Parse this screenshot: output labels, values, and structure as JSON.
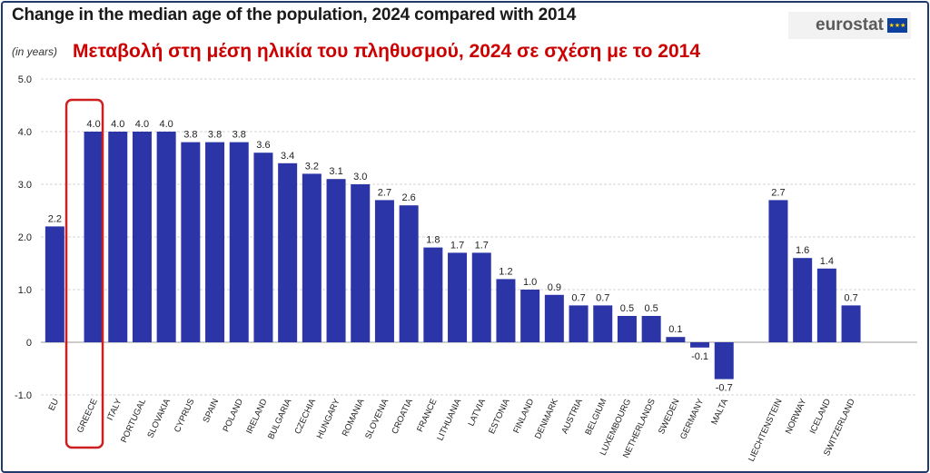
{
  "header": {
    "title": "Change in the median age of the population, 2024 compared with 2014",
    "subtitle": "(in years)",
    "greek_title": "Μεταβολή στη μέση ηλικία του πληθυσμού, 2024 σε σχέση με το 2014",
    "logo": "eurostat"
  },
  "colors": {
    "bar": "#2b35a8",
    "highlight": "#cc1f1f",
    "grid": "#d4d4d4",
    "text": "#222222"
  },
  "chart_data": {
    "type": "bar",
    "title": "Change in the median age of the population, 2024 compared with 2014",
    "ylim": [
      -1.0,
      5.0
    ],
    "yticks": [
      -1.0,
      0,
      1.0,
      2.0,
      3.0,
      4.0,
      5.0
    ],
    "ytick_labels": [
      "-1.0",
      "0",
      "1.0",
      "2.0",
      "3.0",
      "4.0",
      "5.0"
    ],
    "grid": true,
    "highlighted": "GREECE",
    "categories": [
      "EU",
      "GREECE",
      "ITALY",
      "PORTUGAL",
      "SLOVAKIA",
      "CYPRUS",
      "SPAIN",
      "POLAND",
      "IRELAND",
      "BULGARIA",
      "CZECHIA",
      "HUNGARY",
      "ROMANIA",
      "SLOVENIA",
      "CROATIA",
      "FRANCE",
      "LITHUANIA",
      "LATVIA",
      "ESTONIA",
      "FINLAND",
      "DENMARK",
      "AUSTRIA",
      "BELGIUM",
      "LUXEMBOURG",
      "NETHERLANDS",
      "SWEDEN",
      "GERMANY",
      "MALTA",
      "LIECHTENSTEIN",
      "NORWAY",
      "ICELAND",
      "SWITZERLAND"
    ],
    "values": [
      2.2,
      4.0,
      4.0,
      4.0,
      4.0,
      3.8,
      3.8,
      3.8,
      3.6,
      3.4,
      3.2,
      3.1,
      3.0,
      2.7,
      2.6,
      1.8,
      1.7,
      1.7,
      1.2,
      1.0,
      0.9,
      0.7,
      0.7,
      0.5,
      0.5,
      0.1,
      -0.1,
      -0.7,
      2.7,
      1.6,
      1.4,
      0.7
    ],
    "value_labels": [
      "2.2",
      "4.0",
      "4.0",
      "4.0",
      "4.0",
      "3.8",
      "3.8",
      "3.8",
      "3.6",
      "3.4",
      "3.2",
      "3.1",
      "3.0",
      "2.7",
      "2.6",
      "1.8",
      "1.7",
      "1.7",
      "1.2",
      "1.0",
      "0.9",
      "0.7",
      "0.7",
      "0.5",
      "0.5",
      "0.1",
      "-0.1",
      "-0.7",
      "2.7",
      "1.6",
      "1.4",
      "0.7"
    ]
  }
}
